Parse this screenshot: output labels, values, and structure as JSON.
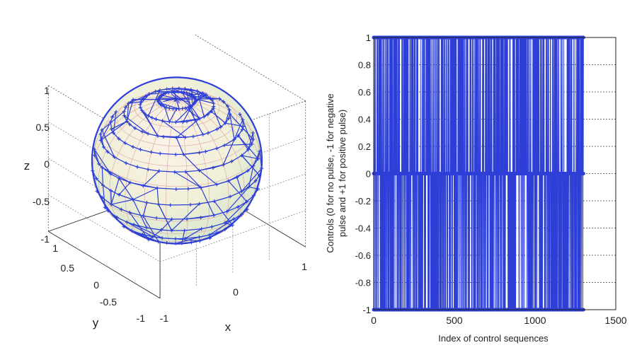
{
  "chart_data": [
    {
      "type": "scatter3d",
      "description_of_marks": "Trajectory points on a unit sphere surface connected by line segments",
      "xlabel": "x",
      "ylabel": "y",
      "zlabel": "z",
      "xlim": [
        -1,
        1
      ],
      "ylim": [
        -1,
        1
      ],
      "zlim": [
        -1,
        1
      ],
      "x_ticks": [
        "-1",
        "0",
        "1"
      ],
      "y_ticks": [
        "-1",
        "-0.5",
        "0",
        "0.5",
        "1"
      ],
      "z_ticks": [
        "-1",
        "-0.5",
        "0",
        "0.5",
        "1"
      ],
      "grid": true,
      "series_color": "#2d3fd6",
      "mesh_color": "#d9a3a3"
    },
    {
      "type": "line",
      "title": "",
      "xlabel": "Index of control sequences",
      "ylabel_lines": [
        "Controls (0 for no pulse, -1 for negative",
        "pulse and +1 for positive pulse)"
      ],
      "xlim": [
        0,
        1500
      ],
      "ylim": [
        -1,
        1
      ],
      "x_ticks": [
        "0",
        "500",
        "1000",
        "1500"
      ],
      "y_ticks": [
        "-1",
        "-0.8",
        "-0.6",
        "-0.4",
        "-0.2",
        "0",
        "0.2",
        "0.4",
        "0.6",
        "0.8",
        "1"
      ],
      "levels": [
        -1,
        0,
        1
      ],
      "n_points": 1300,
      "grid": true,
      "series_color": "#2d3fd6"
    }
  ]
}
